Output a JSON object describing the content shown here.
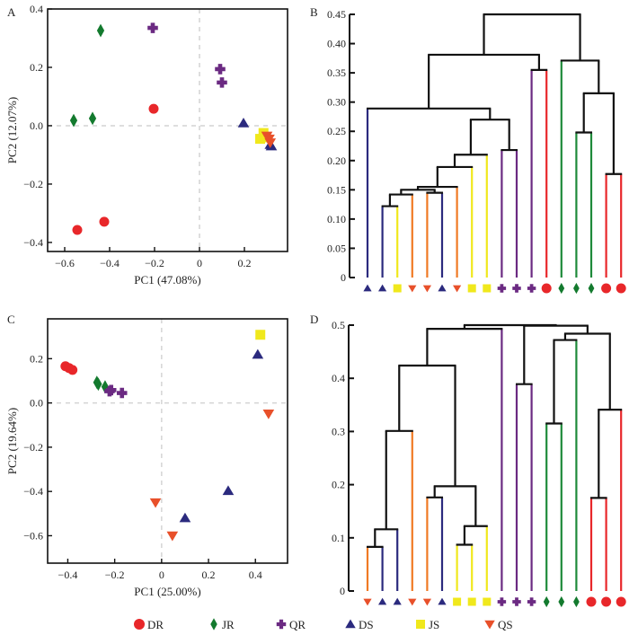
{
  "groups": [
    {
      "key": "DR",
      "label": "DR",
      "color": "#e8272a",
      "shape": "circle"
    },
    {
      "key": "JR",
      "label": "JR",
      "color": "#137a2e",
      "shape": "diamond"
    },
    {
      "key": "QR",
      "label": "QR",
      "color": "#6b2a82",
      "shape": "cross"
    },
    {
      "key": "DS",
      "label": "DS",
      "color": "#2b2a7e",
      "shape": "triangle-up"
    },
    {
      "key": "JS",
      "label": "JS",
      "color": "#f0e81c",
      "shape": "square"
    },
    {
      "key": "QS",
      "label": "QS",
      "color": "#e8502a",
      "shape": "triangle-down"
    }
  ],
  "branch_colors": {
    "DR": "#e8272a",
    "JR": "#1e8a3a",
    "QR": "#6b2a82",
    "DS": "#2b2a7e",
    "JS": "#f0e81c",
    "QS": "#f07a24",
    "internal": "#111111"
  },
  "chart_data": [
    {
      "panel": "A",
      "type": "scatter",
      "xlabel": "PC1 (47.08%)",
      "ylabel": "PC2 (12.07%)",
      "xlim": [
        -0.676,
        0.392
      ],
      "ylim": [
        -0.431,
        0.4
      ],
      "xticks": [
        -0.6,
        -0.4,
        -0.2,
        0,
        0.2
      ],
      "xtick_labels": [
        "−0.6",
        "−0.4",
        "−0.2",
        "0",
        "0.2"
      ],
      "yticks": [
        0.4,
        0.2,
        0,
        -0.2,
        -0.4
      ],
      "ytick_labels": [
        "0.4",
        "0.2",
        "0.0",
        "−0.2",
        "−0.4"
      ],
      "reference_lines": {
        "x": 0,
        "y": 0
      },
      "points": [
        {
          "group": "JR",
          "x": -0.44,
          "y": 0.326
        },
        {
          "group": "JR",
          "x": -0.56,
          "y": 0.018
        },
        {
          "group": "JR",
          "x": -0.476,
          "y": 0.025
        },
        {
          "group": "QR",
          "x": -0.208,
          "y": 0.335
        },
        {
          "group": "QR",
          "x": 0.092,
          "y": 0.194
        },
        {
          "group": "QR",
          "x": 0.1,
          "y": 0.148
        },
        {
          "group": "DR",
          "x": -0.204,
          "y": 0.058
        },
        {
          "group": "DR",
          "x": -0.544,
          "y": -0.357
        },
        {
          "group": "DR",
          "x": -0.424,
          "y": -0.329
        },
        {
          "group": "DS",
          "x": 0.196,
          "y": 0.009
        },
        {
          "group": "JS",
          "x": 0.27,
          "y": -0.045
        },
        {
          "group": "JS",
          "x": 0.285,
          "y": -0.025
        },
        {
          "group": "JS",
          "x": 0.29,
          "y": -0.04
        },
        {
          "group": "DS",
          "x": 0.32,
          "y": -0.07
        },
        {
          "group": "DS",
          "x": 0.315,
          "y": -0.065
        },
        {
          "group": "QS",
          "x": 0.3,
          "y": -0.035
        },
        {
          "group": "QS",
          "x": 0.31,
          "y": -0.045
        },
        {
          "group": "QS",
          "x": 0.315,
          "y": -0.058
        }
      ]
    },
    {
      "panel": "B",
      "type": "dendrogram",
      "ylim": [
        0,
        0.45
      ],
      "yticks": [
        0,
        0.05,
        0.1,
        0.15,
        0.2,
        0.25,
        0.3,
        0.35,
        0.4,
        0.45
      ],
      "ytick_labels": [
        "0",
        "0.05",
        "0.10",
        "0.15",
        "0.20",
        "0.25",
        "0.30",
        "0.35",
        "0.40",
        "0.45"
      ],
      "leaves": [
        "DS",
        "DS",
        "JS",
        "QS",
        "QS",
        "DS",
        "QS",
        "JS",
        "JS",
        "QR",
        "QR",
        "QR",
        "DR",
        "JR",
        "JR",
        "JR",
        "DR",
        "DR"
      ],
      "merges": [
        {
          "id": "n1",
          "a": 1,
          "b": 2,
          "h": 0.122
        },
        {
          "id": "n2",
          "a": "n1",
          "b": 3,
          "h": 0.142
        },
        {
          "id": "n3",
          "a": 4,
          "b": 5,
          "h": 0.145
        },
        {
          "id": "n4",
          "a": "n2",
          "b": "n3",
          "h": 0.15
        },
        {
          "id": "n5",
          "a": "n4",
          "b": 6,
          "h": 0.155
        },
        {
          "id": "n6",
          "a": "n5",
          "b": 7,
          "h": 0.189
        },
        {
          "id": "n7",
          "a": "n6",
          "b": 8,
          "h": 0.21
        },
        {
          "id": "n8",
          "a": 9,
          "b": 10,
          "h": 0.218
        },
        {
          "id": "n9",
          "a": "n7",
          "b": "n8",
          "h": 0.27
        },
        {
          "id": "n10",
          "a": 0,
          "b": "n9",
          "h": 0.289
        },
        {
          "id": "n11",
          "a": 11,
          "b": 12,
          "h": 0.355
        },
        {
          "id": "n12",
          "a": "n10",
          "b": "n11",
          "h": 0.381
        },
        {
          "id": "n13",
          "a": 14,
          "b": 15,
          "h": 0.248
        },
        {
          "id": "n14",
          "a": 16,
          "b": 17,
          "h": 0.177
        },
        {
          "id": "n15",
          "a": "n13",
          "b": "n14",
          "h": 0.315
        },
        {
          "id": "n16",
          "a": 13,
          "b": "n15",
          "h": 0.371
        },
        {
          "id": "n17",
          "a": "n12",
          "b": "n16",
          "h": 0.45
        }
      ]
    },
    {
      "panel": "C",
      "type": "scatter",
      "xlabel": "PC1 (25.00%)",
      "ylabel": "PC2 (19.64%)",
      "xlim": [
        -0.486,
        0.537
      ],
      "ylim": [
        -0.724,
        0.38
      ],
      "xticks": [
        -0.4,
        -0.2,
        0,
        0.2,
        0.4
      ],
      "xtick_labels": [
        "−0.4",
        "−0.2",
        "0",
        "0.2",
        "0.4"
      ],
      "yticks": [
        0.2,
        0,
        -0.2,
        -0.4,
        -0.6
      ],
      "ytick_labels": [
        "0.2",
        "0.0",
        "−0.2",
        "−0.4",
        "−0.6"
      ],
      "reference_lines": {
        "x": 0,
        "y": 0
      },
      "points": [
        {
          "group": "DR",
          "x": -0.41,
          "y": 0.166
        },
        {
          "group": "DR",
          "x": -0.38,
          "y": 0.149
        },
        {
          "group": "DR",
          "x": -0.395,
          "y": 0.158
        },
        {
          "group": "JR",
          "x": -0.276,
          "y": 0.093
        },
        {
          "group": "JR",
          "x": -0.27,
          "y": 0.085
        },
        {
          "group": "JR",
          "x": -0.241,
          "y": 0.073
        },
        {
          "group": "QR",
          "x": -0.222,
          "y": 0.053
        },
        {
          "group": "QR",
          "x": -0.215,
          "y": 0.058
        },
        {
          "group": "QR",
          "x": -0.169,
          "y": 0.045
        },
        {
          "group": "JS",
          "x": 0.421,
          "y": 0.308
        },
        {
          "group": "DS",
          "x": 0.41,
          "y": 0.219
        },
        {
          "group": "QS",
          "x": 0.456,
          "y": -0.049
        },
        {
          "group": "QS",
          "x": -0.026,
          "y": -0.45
        },
        {
          "group": "QS",
          "x": 0.046,
          "y": -0.6
        },
        {
          "group": "DS",
          "x": 0.1,
          "y": -0.52
        },
        {
          "group": "DS",
          "x": 0.284,
          "y": -0.397
        }
      ]
    },
    {
      "panel": "D",
      "type": "dendrogram",
      "ylim": [
        0,
        0.5
      ],
      "yticks": [
        0,
        0.1,
        0.2,
        0.3,
        0.4,
        0.5
      ],
      "ytick_labels": [
        "0",
        "0.1",
        "0.2",
        "0.3",
        "0.4",
        "0.5"
      ],
      "leaves": [
        "QS",
        "DS",
        "DS",
        "QS",
        "QS",
        "DS",
        "JS",
        "JS",
        "JS",
        "QR",
        "QR",
        "QR",
        "JR",
        "JR",
        "JR",
        "DR",
        "DR",
        "DR"
      ],
      "merges": [
        {
          "id": "m1",
          "a": 0,
          "b": 1,
          "h": 0.083
        },
        {
          "id": "m2",
          "a": "m1",
          "b": 2,
          "h": 0.116
        },
        {
          "id": "m3",
          "a": "m2",
          "b": 3,
          "h": 0.301
        },
        {
          "id": "m4",
          "a": 4,
          "b": 5,
          "h": 0.176
        },
        {
          "id": "m5",
          "a": 6,
          "b": 7,
          "h": 0.087
        },
        {
          "id": "m6",
          "a": "m5",
          "b": 8,
          "h": 0.122
        },
        {
          "id": "m7",
          "a": "m4",
          "b": "m6",
          "h": 0.197
        },
        {
          "id": "m8",
          "a": "m3",
          "b": "m7",
          "h": 0.424
        },
        {
          "id": "m9",
          "a": "m8",
          "b": 9,
          "h": 0.493
        },
        {
          "id": "m10",
          "a": 10,
          "b": 11,
          "h": 0.389
        },
        {
          "id": "m11",
          "a": 12,
          "b": 13,
          "h": 0.315
        },
        {
          "id": "m12",
          "a": "m11",
          "b": 14,
          "h": 0.472
        },
        {
          "id": "m13",
          "a": 15,
          "b": 16,
          "h": 0.175
        },
        {
          "id": "m14",
          "a": "m13",
          "b": 17,
          "h": 0.341
        },
        {
          "id": "m15",
          "a": "m12",
          "b": "m14",
          "h": 0.484
        },
        {
          "id": "m16",
          "a": "m10",
          "b": "m15",
          "h": 0.499
        },
        {
          "id": "m17",
          "a": "m9",
          "b": "m16",
          "h": 0.5
        }
      ]
    }
  ],
  "legend": {
    "items": [
      "DR",
      "JR",
      "QR",
      "DS",
      "JS",
      "QS"
    ],
    "placement": "bottom-center"
  },
  "panel_labels": {
    "A": "A",
    "B": "B",
    "C": "C",
    "D": "D"
  }
}
